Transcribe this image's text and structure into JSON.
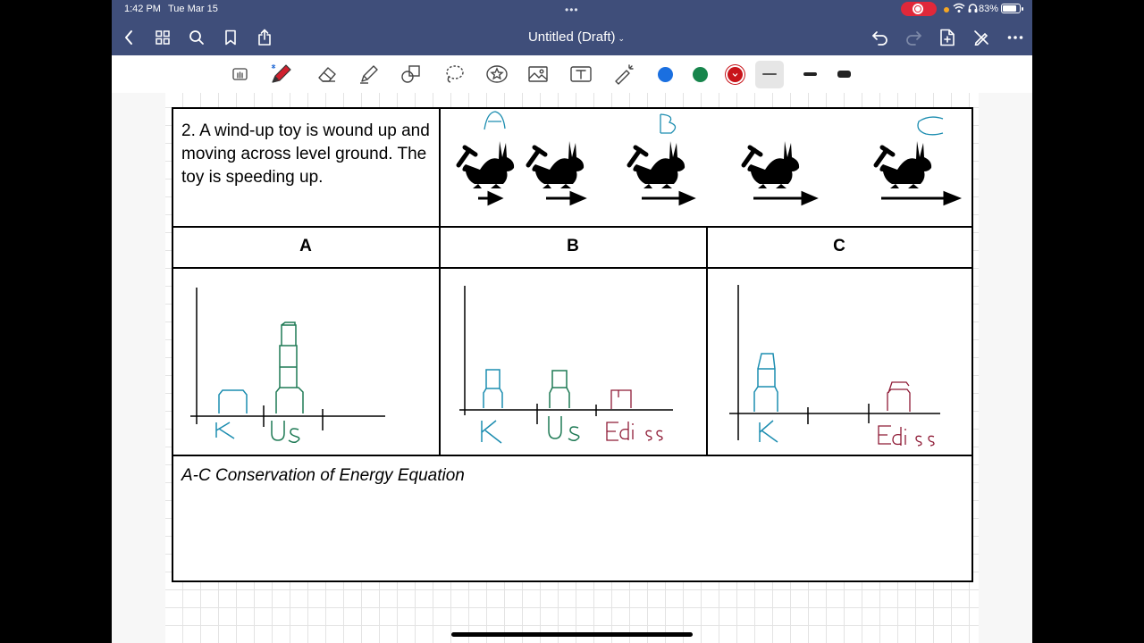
{
  "status": {
    "time": "1:42 PM",
    "date": "Tue Mar 15",
    "multitask": "•••",
    "battery": "83%"
  },
  "nav": {
    "title": "Untitled (Draft)",
    "title_chevron": "⌄"
  },
  "toolbar": {
    "tools": [
      "hand-mode",
      "pen",
      "eraser",
      "highlighter",
      "shapes",
      "lasso",
      "elements",
      "image",
      "text",
      "laser-pointer"
    ],
    "colors": [
      "#1a6fe0",
      "#17854c",
      "#c8141a"
    ]
  },
  "worksheet": {
    "problem": "2. A wind-up toy is wound up and moving across level ground. The toy is speeding up.",
    "headers": [
      "A",
      "B",
      "C"
    ],
    "equation_label": "A-C Conservation of Energy Equation"
  },
  "annotations": {
    "snapshot_labels": [
      "A",
      "B",
      "C"
    ],
    "axis_labels_a": [
      "K",
      "Us"
    ],
    "axis_labels_b": [
      "K",
      "Us",
      "Ediss"
    ],
    "axis_labels_c": [
      "K",
      "Ediss"
    ],
    "ink_colors": {
      "kinetic": "#1c8db0",
      "spring": "#1f7a55",
      "dissipated": "#8e1a35"
    }
  },
  "bar_charts": [
    {
      "panel": "A",
      "K": 1,
      "Us": 4
    },
    {
      "panel": "B",
      "K": 1,
      "Us": 1,
      "Ediss": 1
    },
    {
      "panel": "C",
      "K": 3,
      "Ediss": 1
    }
  ]
}
